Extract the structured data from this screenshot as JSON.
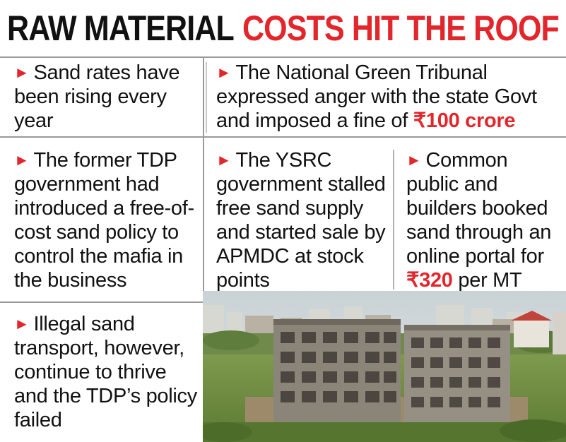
{
  "title": {
    "part1": "RAW MATERIAL",
    "part2": "COSTS HIT THE ROOF"
  },
  "colors": {
    "accent": "#e3262b",
    "text": "#111111",
    "rule": "#9a9a9a"
  },
  "points": {
    "sand_rates": "Sand rates have been rising every year",
    "ngt": {
      "text": "The National Green Tribunal expressed anger with the state Govt and imposed a fine of",
      "amount": "₹100 crore"
    },
    "tdp_policy": "The former TDP government had introduced a free-of-cost sand policy to control the mafia in the business",
    "ysrc": "The YSRC government stalled free sand supply and started sale by APMDC at stock points",
    "common_public": {
      "text": "Common public and builders booked sand through an online portal for",
      "price": "₹320",
      "unit": "per MT"
    },
    "illegal": "Illegal sand transport, however, continue to thrive and the TDP’s policy failed"
  },
  "icon": "red-arrowhead-icon"
}
